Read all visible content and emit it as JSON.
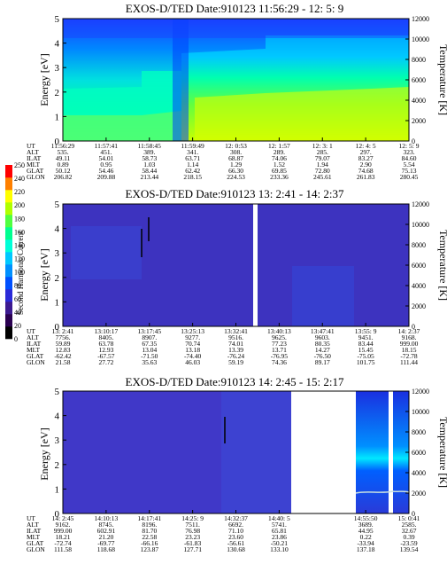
{
  "colorbar": {
    "label": "Second Harmonic Current",
    "ticks": [
      "0",
      "20",
      "40",
      "60",
      "80",
      "100",
      "120",
      "140",
      "160",
      "180",
      "200",
      "220",
      "240",
      "250"
    ],
    "colors": [
      "#000000",
      "#2a0050",
      "#3c1a90",
      "#2a2ad8",
      "#0050ff",
      "#0090ff",
      "#00c8ff",
      "#00ffd8",
      "#00ff90",
      "#50ff40",
      "#b0ff00",
      "#ffff00",
      "#ff8000",
      "#ff0000"
    ]
  },
  "chart_data": [
    {
      "type": "heatmap",
      "title": "EXOS-D/TED   Date:910123   11:56:29 - 12: 5: 9",
      "ylabel": "Energy [eV]",
      "y2label": "Temperature [K]",
      "ylim": [
        0,
        5
      ],
      "y2lim": [
        0,
        12000
      ],
      "yticks": [
        "0",
        "1",
        "2",
        "3",
        "4",
        "5"
      ],
      "y2ticks": [
        "0",
        "2000",
        "4000",
        "6000",
        "8000",
        "10000",
        "12000"
      ],
      "x_axis": {
        "row_labels": [
          "UT",
          "ALT",
          "ILAT",
          "MLT",
          "GLAT",
          "GLON"
        ],
        "columns": [
          [
            "11:56:29",
            "535.",
            "49.11",
            "0.89",
            "50.12",
            "206.82"
          ],
          [
            "11:57:41",
            "451.",
            "54.01",
            "0.95",
            "54.46",
            "209.88"
          ],
          [
            "11:58:45",
            "389.",
            "58.73",
            "1.03",
            "58.44",
            "213.44"
          ],
          [
            "11:59:49",
            "341.",
            "63.71",
            "1.14",
            "62.42",
            "218.15"
          ],
          [
            "12: 0:53",
            "308.",
            "68.87",
            "1.29",
            "66.30",
            "224.53"
          ],
          [
            "12: 1:57",
            "289.",
            "74.06",
            "1.52",
            "69.85",
            "233.36"
          ],
          [
            "12: 3: 1",
            "285.",
            "79.07",
            "1.94",
            "72.80",
            "245.61"
          ],
          [
            "12: 4: 5",
            "297.",
            "83.27",
            "2.90",
            "74.68",
            "261.83"
          ],
          [
            "12: 5: 9",
            "323.",
            "84.60",
            "5.54",
            "75.13",
            "280.45"
          ]
        ]
      }
    },
    {
      "type": "heatmap",
      "title": "EXOS-D/TED   Date:910123   13: 2:41 - 14: 2:37",
      "ylabel": "Energy [eV]",
      "y2label": "Temperature [K]",
      "ylim": [
        0,
        5
      ],
      "y2lim": [
        0,
        12000
      ],
      "yticks": [
        "0",
        "1",
        "2",
        "3",
        "4",
        "5"
      ],
      "y2ticks": [
        "0",
        "2000",
        "4000",
        "6000",
        "8000",
        "10000",
        "12000"
      ],
      "x_axis": {
        "row_labels": [
          "UT",
          "ALT",
          "ILAT",
          "MLT",
          "GLAT",
          "GLON"
        ],
        "columns": [
          [
            "13: 2:41",
            "7756.",
            "59.89",
            "12.83",
            "-62.42",
            "21.58"
          ],
          [
            "13:10:17",
            "8405.",
            "63.78",
            "12.93",
            "-67.57",
            "27.72"
          ],
          [
            "13:17:45",
            "8907.",
            "67.35",
            "13.04",
            "-71.50",
            "35.63"
          ],
          [
            "13:25:13",
            "9277.",
            "70.74",
            "13.18",
            "-74.40",
            "46.03"
          ],
          [
            "13:32:41",
            "9516.",
            "74.01",
            "13.39",
            "-76.24",
            "59.19"
          ],
          [
            "13:40:13",
            "9625.",
            "77.23",
            "13.71",
            "-76.95",
            "74.36"
          ],
          [
            "13:47:41",
            "9603.",
            "80.35",
            "14.27",
            "-76.50",
            "89.17"
          ],
          [
            "13:55: 9",
            "9451.",
            "83.44",
            "15.45",
            "-75.05",
            "101.75"
          ],
          [
            "14: 2:37",
            "9168.",
            "999.00",
            "18.15",
            "-72.78",
            "111.44"
          ]
        ]
      }
    },
    {
      "type": "heatmap",
      "title": "EXOS-D/TED   Date:910123   14: 2:45 - 15: 2:17",
      "ylabel": "Energy [eV]",
      "y2label": "Temperature [K]",
      "ylim": [
        0,
        5
      ],
      "y2lim": [
        0,
        12000
      ],
      "yticks": [
        "0",
        "1",
        "2",
        "3",
        "4",
        "5"
      ],
      "y2ticks": [
        "0",
        "2000",
        "4000",
        "6000",
        "8000",
        "10000",
        "12000"
      ],
      "x_axis": {
        "row_labels": [
          "UT",
          "ALT",
          "ILAT",
          "MLT",
          "GLAT",
          "GLON"
        ],
        "columns": [
          [
            "14: 2:45",
            "9162.",
            "999.00",
            "18.21",
            "-72.74",
            "111.58"
          ],
          [
            "14:10:13",
            "8745.",
            "602.91",
            "21.20",
            "-69.77",
            "118.68"
          ],
          [
            "14:17:41",
            "8196.",
            "81.70",
            "22.58",
            "-66.16",
            "123.87"
          ],
          [
            "14:25: 9",
            "7511.",
            "76.98",
            "23.23",
            "-61.83",
            "127.71"
          ],
          [
            "14:32:37",
            "6692.",
            "71.10",
            "23.60",
            "-56.61",
            "130.68"
          ],
          [
            "14:40: 5",
            "5741.",
            "65.81",
            "23.86",
            "-50.21",
            "133.10"
          ],
          [
            "",
            "",
            "",
            "",
            "",
            ""
          ],
          [
            "14:55:50",
            "3689.",
            "44.95",
            "0.22",
            "-33.94",
            "137.18"
          ],
          [
            "15: 0:41",
            "2585.",
            "32.67",
            "0.39",
            "-23.59",
            "139.54"
          ]
        ]
      }
    }
  ]
}
